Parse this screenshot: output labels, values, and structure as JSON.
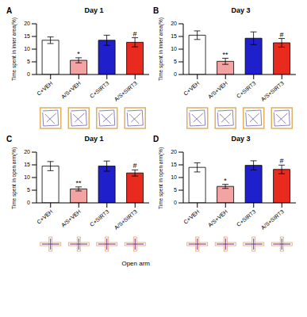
{
  "chart_data": [
    {
      "type": "bar",
      "label": "A",
      "title": "Day 1",
      "ylabel": "Time spent in inner area(%)",
      "categories": [
        "C+VEH",
        "A/S+VEH",
        "C+SIRT3",
        "A/S+SIRT3"
      ],
      "values": [
        13.5,
        5.6,
        13.5,
        12.7
      ],
      "errors": [
        1.3,
        1.0,
        2.0,
        1.8
      ],
      "annotations": [
        null,
        "*",
        null,
        "#"
      ],
      "colors": [
        "#ffffff",
        "#f4a3a3",
        "#1f1fcc",
        "#e82a1f"
      ],
      "ylim": [
        0,
        20
      ],
      "yticks": [
        0,
        5,
        10,
        15,
        20
      ]
    },
    {
      "type": "bar",
      "label": "B",
      "title": "Day 3",
      "ylabel": "Time spent in inner area(%)",
      "categories": [
        "C+VEH",
        "A/S+VEH",
        "C+SIRT3",
        "A/S+SIRT3"
      ],
      "values": [
        15.5,
        5.2,
        14.3,
        12.5
      ],
      "errors": [
        1.7,
        1.2,
        2.5,
        1.7
      ],
      "annotations": [
        null,
        "**",
        null,
        "#"
      ],
      "colors": [
        "#ffffff",
        "#f4a3a3",
        "#1f1fcc",
        "#e82a1f"
      ],
      "ylim": [
        0,
        20
      ],
      "yticks": [
        0,
        5,
        10,
        15,
        20
      ]
    },
    {
      "type": "bar",
      "label": "C",
      "title": "Day 1",
      "ylabel": "Time spent in open arm(%)",
      "categories": [
        "C+VEH",
        "A/S+VEH",
        "C+SIRT3",
        "A/S+SIRT3"
      ],
      "values": [
        14.5,
        5.5,
        14.5,
        11.8
      ],
      "errors": [
        1.8,
        0.8,
        2.0,
        1.2
      ],
      "annotations": [
        null,
        "**",
        null,
        "#"
      ],
      "colors": [
        "#ffffff",
        "#f4a3a3",
        "#1f1fcc",
        "#e82a1f"
      ],
      "ylim": [
        0,
        20
      ],
      "yticks": [
        0,
        5,
        10,
        15,
        20
      ],
      "caption": "Open arm"
    },
    {
      "type": "bar",
      "label": "D",
      "title": "Day 3",
      "ylabel": "Time spent in open arm(%)",
      "categories": [
        "C+VEH",
        "A/S+VEH",
        "C+SIRT3",
        "A/S+SIRT3"
      ],
      "values": [
        14.0,
        6.5,
        14.8,
        13.2
      ],
      "errors": [
        1.8,
        0.8,
        1.8,
        1.7
      ],
      "annotations": [
        null,
        "*",
        null,
        "#"
      ],
      "colors": [
        "#ffffff",
        "#f4a3a3",
        "#1f1fcc",
        "#e82a1f"
      ],
      "ylim": [
        0,
        20
      ],
      "yticks": [
        0,
        5,
        10,
        15,
        20
      ]
    }
  ]
}
